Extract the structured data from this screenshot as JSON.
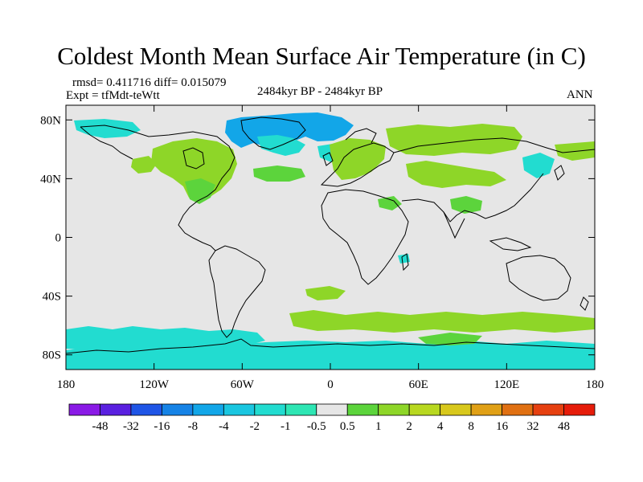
{
  "title": "Coldest Month Mean Surface Air Temperature (in C)",
  "stats": "rmsd= 0.411716 diff= 0.015079",
  "expt": "Expt = tfMdt-teWtt",
  "period": "2484kyr BP - 2484kyr BP",
  "season": "ANN",
  "lat_labels": [
    "80N",
    "40N",
    "0",
    "40S",
    "80S"
  ],
  "lon_labels": [
    "180",
    "120W",
    "60W",
    "0",
    "60E",
    "120E",
    "180"
  ],
  "colorbar": {
    "labels": [
      "-48",
      "-32",
      "-16",
      "-8",
      "-4",
      "-2",
      "-1",
      "-0.5",
      "0.5",
      "1",
      "2",
      "4",
      "8",
      "16",
      "32",
      "48"
    ],
    "colors": [
      "#8a1ae6",
      "#5a20e0",
      "#1f55e6",
      "#1683e6",
      "#12a6e8",
      "#1ac6e0",
      "#22dcd0",
      "#2ee6b4",
      "#e6e6e6",
      "#5cd43c",
      "#8ed628",
      "#b8d820",
      "#d8c81c",
      "#e0a016",
      "#e07012",
      "#e64010",
      "#e61c0a"
    ]
  },
  "colors": {
    "land_fill": "#e6e6e6",
    "pos_small": "#8ed628",
    "pos_light": "#5cd43c",
    "neg_small": "#22dcd0",
    "neg_mid": "#12a6e8",
    "coast": "#000000"
  }
}
